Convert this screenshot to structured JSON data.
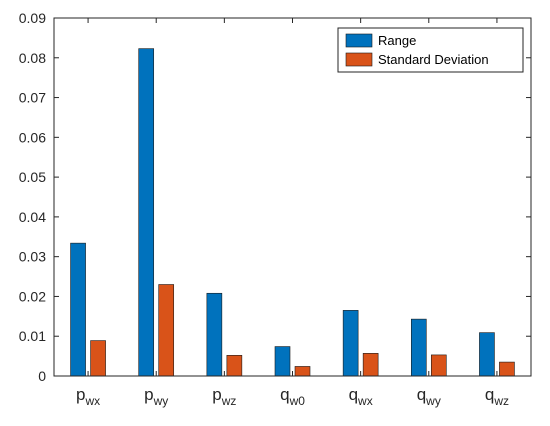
{
  "chart_data": {
    "type": "bar",
    "categories": [
      {
        "base": "p",
        "sub": "wx"
      },
      {
        "base": "p",
        "sub": "wy"
      },
      {
        "base": "p",
        "sub": "wz"
      },
      {
        "base": "q",
        "sub": "w0"
      },
      {
        "base": "q",
        "sub": "wx"
      },
      {
        "base": "q",
        "sub": "wy"
      },
      {
        "base": "q",
        "sub": "wz"
      }
    ],
    "series": [
      {
        "name": "Range",
        "color": "#0072BD",
        "values": [
          0.0334,
          0.0823,
          0.0208,
          0.0074,
          0.0165,
          0.0143,
          0.0109
        ]
      },
      {
        "name": "Standard Deviation",
        "color": "#D95319",
        "values": [
          0.0089,
          0.023,
          0.0052,
          0.0024,
          0.0057,
          0.0053,
          0.0035
        ]
      }
    ],
    "ylim": [
      0,
      0.09
    ],
    "yticks": [
      "0",
      "0.01",
      "0.02",
      "0.03",
      "0.04",
      "0.05",
      "0.06",
      "0.07",
      "0.08",
      "0.09"
    ],
    "title": "",
    "xlabel": "",
    "ylabel": "",
    "legend_position": "top-right",
    "grid": false
  }
}
